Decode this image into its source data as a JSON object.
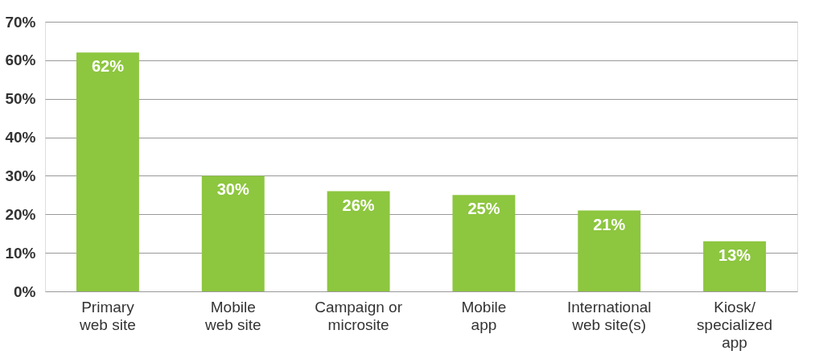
{
  "chart_data": {
    "type": "bar",
    "categories": [
      "Primary\nweb site",
      "Mobile\nweb site",
      "Campaign or\nmicrosite",
      "Mobile\napp",
      "International\nweb site(s)",
      "Kiosk/\nspecialized\napp"
    ],
    "values": [
      62,
      30,
      26,
      25,
      21,
      13
    ],
    "value_labels": [
      "62%",
      "30%",
      "26%",
      "25%",
      "21%",
      "13%"
    ],
    "color": "#8dc63f",
    "ylim": [
      0,
      70
    ],
    "yticks": [
      {
        "value": 0,
        "label": "0%"
      },
      {
        "value": 10,
        "label": "10%"
      },
      {
        "value": 20,
        "label": "20%"
      },
      {
        "value": 30,
        "label": "30%"
      },
      {
        "value": 40,
        "label": "40%"
      },
      {
        "value": 50,
        "label": "50%"
      },
      {
        "value": 60,
        "label": "60%"
      },
      {
        "value": 70,
        "label": "70%"
      }
    ],
    "grid": "y"
  }
}
